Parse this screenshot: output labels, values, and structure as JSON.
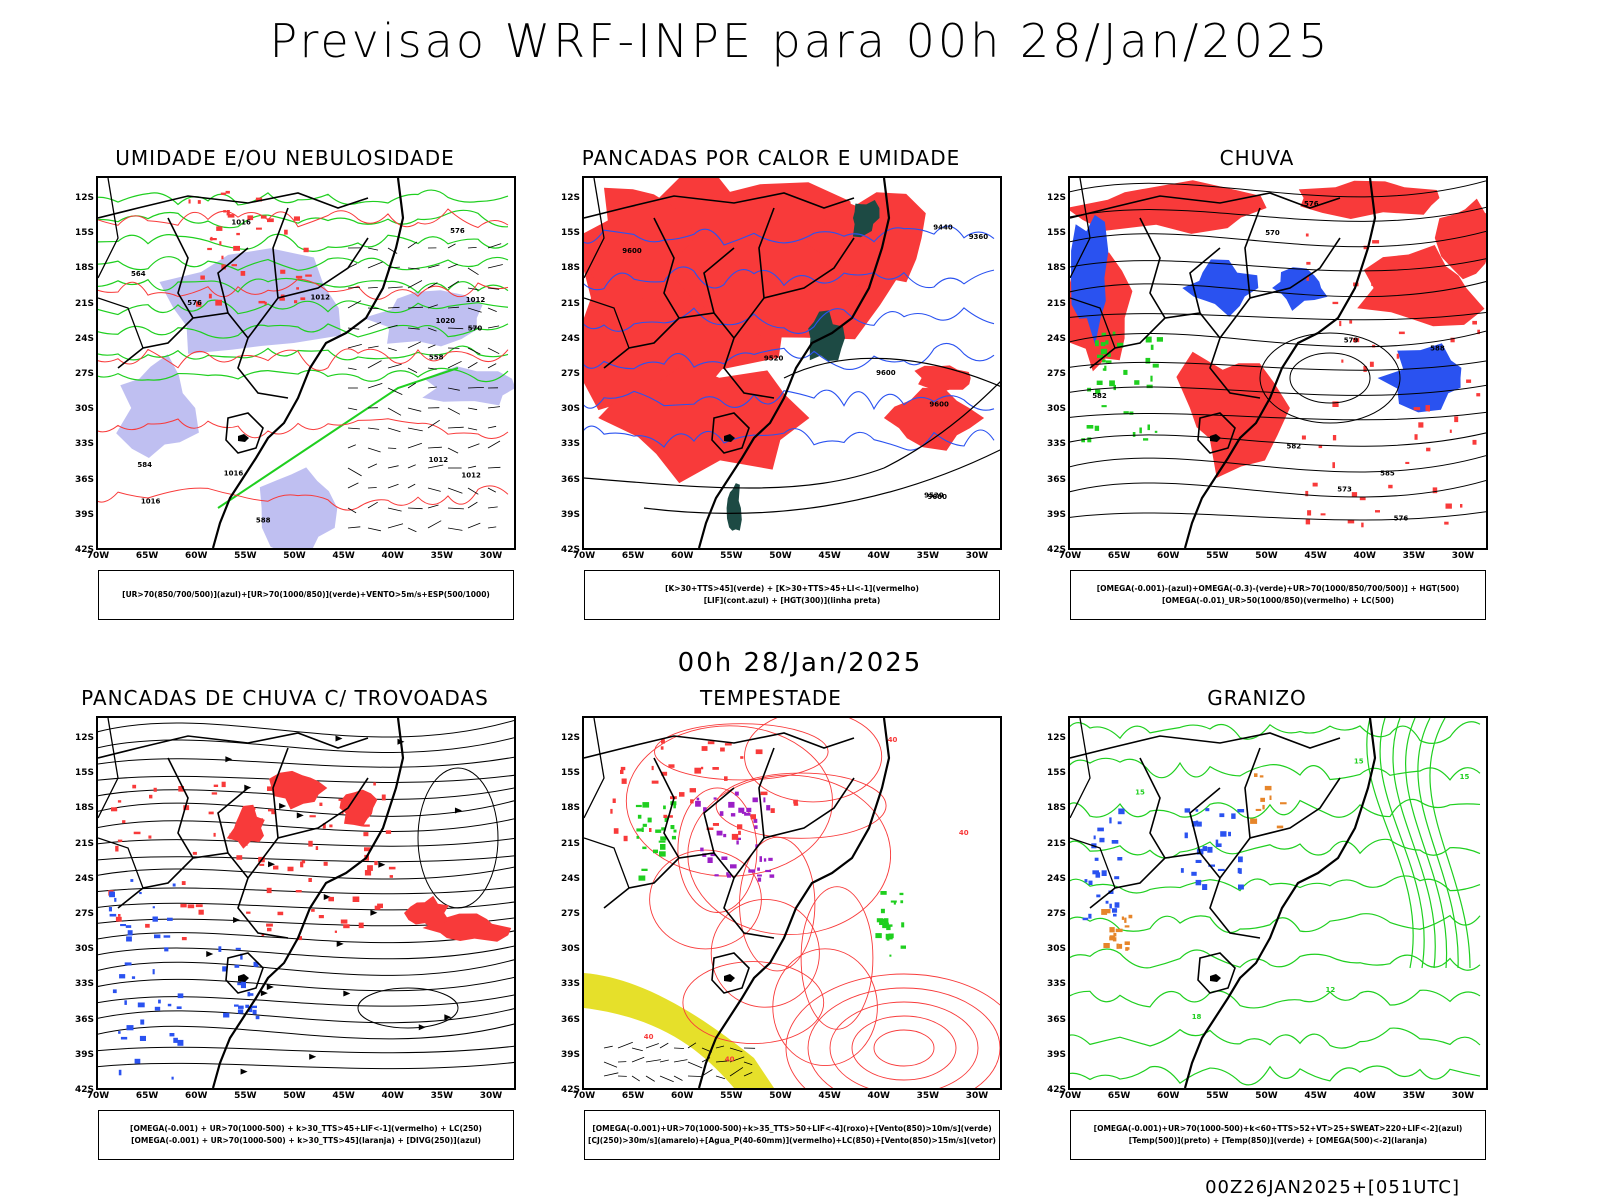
{
  "header": {
    "title": "Previsao WRF-INPE  para 00h 28/Jan/2025",
    "subtitle": "00h 28/Jan/2025",
    "footer": "00Z26JAN2025+[051UTC]"
  },
  "axes": {
    "lat_ticks": [
      "12S",
      "15S",
      "18S",
      "21S",
      "24S",
      "27S",
      "30S",
      "33S",
      "36S",
      "39S",
      "42S"
    ],
    "lon_ticks": [
      "70W",
      "65W",
      "60W",
      "55W",
      "50W",
      "45W",
      "40W",
      "35W",
      "30W"
    ]
  },
  "colors": {
    "red": "#f83a3a",
    "green": "#1fcf1f",
    "blue": "#2a52f0",
    "lavender": "#b8b8f0",
    "darkteal": "#1d4a44",
    "yellow": "#e6e02a",
    "purple": "#9b1fc6",
    "orange": "#e6852a"
  },
  "panels": [
    {
      "id": "umidade",
      "title": "UMIDADE E/OU NEBULOSIDADE",
      "legend": [
        "[UR>70(850/700/500)](azul)+[UR>70(1000/850)](verde)+VENTO>5m/s+ESP(500/1000)"
      ],
      "contour_labels": [
        "1012",
        "1012",
        "1012",
        "1012",
        "1016",
        "1016",
        "1020",
        "1016",
        "576",
        "576",
        "570",
        "564",
        "558",
        "588",
        "584"
      ]
    },
    {
      "id": "pancadas-calor",
      "title": "PANCADAS POR CALOR E UMIDADE",
      "legend": [
        "[K>30+TTS>45](verde) + [K>30+TTS>45+LI<-1](vermelho)",
        "[LIF](cont.azul) + [HGT(300)](linha preta)"
      ],
      "contour_labels": [
        "9600",
        "9600",
        "9600",
        "9600",
        "9520",
        "9440",
        "9520",
        "9360"
      ]
    },
    {
      "id": "chuva",
      "title": "CHUVA",
      "legend": [
        "[OMEGA(-0.001)-(azul)+OMEGA(-0.3)-(verde)+UR>70(1000/850/700/500)] + HGT(500)",
        "[OMEGA(-0.01)_UR>50(1000/850)(vermelho) + LC(500)"
      ],
      "contour_labels": [
        "588",
        "582",
        "576",
        "576",
        "573",
        "570",
        "582",
        "579",
        "585"
      ]
    },
    {
      "id": "trovoadas",
      "title": "PANCADAS DE CHUVA C/ TROVOADAS",
      "legend": [
        "[OMEGA(-0.001) + UR>70(1000-500) + k>30_TTS>45+LIF<-1](vermelho) + LC(250)",
        "[OMEGA(-0.001) + UR>70(1000-500) + k>30_TTS>45](laranja) + [DIVG(250)](azul)"
      ],
      "contour_labels": []
    },
    {
      "id": "tempestade",
      "title": "TEMPESTADE",
      "legend": [
        "[OMEGA(-0.001)+UR>70(1000-500)+k>35_TTS>50+LIF<-4](roxo)+[Vento(850)>10m/s](verde)",
        "[CJ(250)>30m/s](amarelo)+[Agua_P(40-60mm)](vermelho)+LC(850)+[Vento(850)>15m/s](vetor)"
      ],
      "contour_labels": [
        "40",
        "40",
        "40",
        "40"
      ]
    },
    {
      "id": "granizo",
      "title": "GRANIZO",
      "legend": [
        "[OMEGA(-0.001)+UR>70(1000-500)+k<60+TTS>52+VT>25+SWEAT>220+LIF<-2](azul)",
        "[Temp(500)](preto) + [Temp(850)](verde) + [OMEGA(500)<-2](laranja)"
      ],
      "contour_labels": [
        "15",
        "15",
        "15",
        "12",
        "18"
      ]
    }
  ]
}
